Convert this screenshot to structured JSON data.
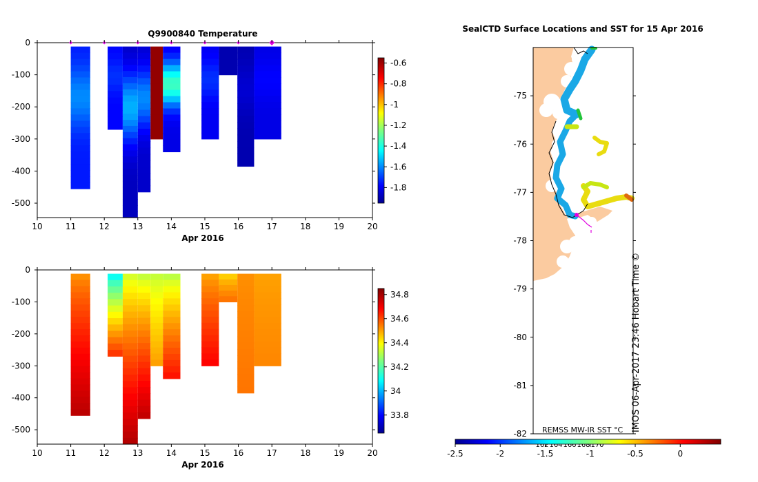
{
  "colors": {
    "land": "#fbcba0",
    "deep_blue": "#0a1f8f",
    "mid_blue": "#0b45c8",
    "light_blue": "#1aa8e6",
    "dark_red": "#b21c0c",
    "orange": "#f5a10d",
    "dark_orange": "#d9600b",
    "yellow_green": "#c7e614",
    "track": "#000000",
    "marker": "#e000e0"
  },
  "chart_data": [
    {
      "type": "heatmap",
      "title": "Q9900840  Temperature",
      "xlabel": "Apr 2016",
      "ylabel": "",
      "xlim": [
        10,
        20
      ],
      "ylim": [
        -545,
        0
      ],
      "xticks": [
        "10",
        "11",
        "12",
        "13",
        "14",
        "15",
        "16",
        "17",
        "18",
        "19",
        "20"
      ],
      "yticks": [
        "0",
        "-100",
        "-200",
        "-300",
        "-400",
        "-500"
      ],
      "colorbar": {
        "range": [
          -1.95,
          -0.55
        ],
        "ticks": [
          "-0.6",
          "-0.8",
          "-1",
          "-1.2",
          "-1.4",
          "-1.6",
          "-1.8"
        ]
      },
      "profile_markers": [
        11.0,
        12.0,
        13.0,
        14.0,
        15.0,
        16.0,
        17.0
      ],
      "profiles": [
        {
          "x0": 11.0,
          "x1": 11.58,
          "depth": -455,
          "value": -1.75,
          "core": -1.6
        },
        {
          "x0": 12.1,
          "x1": 12.55,
          "depth": -270,
          "value": -1.78,
          "core": -1.72
        },
        {
          "x0": 12.55,
          "x1": 13.0,
          "depth": -545,
          "value": -1.88,
          "core": -1.55
        },
        {
          "x0": 13.0,
          "x1": 13.38,
          "depth": -465,
          "value": -1.86,
          "core": -1.6
        },
        {
          "x0": 13.38,
          "x1": 13.75,
          "depth": -300,
          "value": -0.58,
          "core": -0.58
        },
        {
          "x0": 13.75,
          "x1": 14.27,
          "depth": -340,
          "value": -1.82,
          "core": -1.35
        },
        {
          "x0": 14.9,
          "x1": 15.42,
          "depth": -300,
          "value": -1.8,
          "core": -1.72
        },
        {
          "x0": 15.42,
          "x1": 15.97,
          "depth": -100,
          "value": -1.9,
          "core": -1.9
        },
        {
          "x0": 15.97,
          "x1": 16.47,
          "depth": -385,
          "value": -1.9,
          "core": -1.85
        },
        {
          "x0": 16.47,
          "x1": 17.28,
          "depth": -300,
          "value": -1.82,
          "core": -1.78
        }
      ]
    },
    {
      "type": "heatmap",
      "title": "",
      "xlabel": "Apr 2016",
      "ylabel": "",
      "xlim": [
        10,
        20
      ],
      "ylim": [
        -545,
        0
      ],
      "xticks": [
        "10",
        "11",
        "12",
        "13",
        "14",
        "15",
        "16",
        "17",
        "18",
        "19",
        "20"
      ],
      "yticks": [
        "0",
        "-100",
        "-200",
        "-300",
        "-400",
        "-500"
      ],
      "colorbar": {
        "range": [
          33.65,
          34.85
        ],
        "ticks": [
          "34.8",
          "34.6",
          "34.4",
          "34.2",
          "34",
          "33.8"
        ]
      },
      "profiles": [
        {
          "x0": 11.0,
          "x1": 11.58,
          "depth": -455,
          "top": 34.52,
          "bottom": 34.77
        },
        {
          "x0": 12.1,
          "x1": 12.55,
          "depth": -270,
          "top": 34.1,
          "bottom": 34.62
        },
        {
          "x0": 12.55,
          "x1": 13.0,
          "depth": -545,
          "top": 34.35,
          "bottom": 34.78
        },
        {
          "x0": 13.0,
          "x1": 13.38,
          "depth": -465,
          "top": 34.33,
          "bottom": 34.76
        },
        {
          "x0": 13.38,
          "x1": 13.75,
          "depth": -300,
          "top": 34.33,
          "bottom": 34.5
        },
        {
          "x0": 13.75,
          "x1": 14.27,
          "depth": -340,
          "top": 34.32,
          "bottom": 34.66
        },
        {
          "x0": 14.9,
          "x1": 15.42,
          "depth": -300,
          "top": 34.5,
          "bottom": 34.68
        },
        {
          "x0": 15.42,
          "x1": 15.97,
          "depth": -100,
          "top": 34.45,
          "bottom": 34.55
        },
        {
          "x0": 15.97,
          "x1": 16.47,
          "depth": -385,
          "top": 34.52,
          "bottom": 34.55
        },
        {
          "x0": 16.47,
          "x1": 17.28,
          "depth": -300,
          "top": 34.5,
          "bottom": 34.53
        }
      ]
    },
    {
      "type": "scatter",
      "title": "SealCTD Surface Locations and SST for 15 Apr 2016",
      "xlabel": "",
      "ylabel": "",
      "ylim": [
        -82,
        -74
      ],
      "yticks": [
        "-75",
        "-76",
        "-77",
        "-78",
        "-79",
        "-80",
        "-81",
        "-82"
      ],
      "colorbar": {
        "label": "REMSS MW-IR SST °C",
        "range": [
          -2.5,
          0.45
        ],
        "ticks": [
          "-2.5",
          "-2",
          "-1.5",
          "-1",
          "-0.5",
          "0"
        ]
      },
      "lon_labels": [
        "162",
        "164",
        "166",
        "168",
        "170"
      ],
      "timestamp": "IMOS 06-Apr-2017 23:46 Hobart Time ©"
    }
  ]
}
